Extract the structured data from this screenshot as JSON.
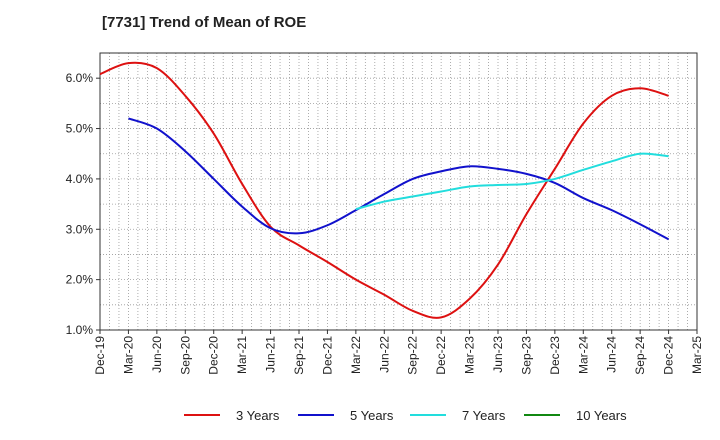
{
  "chart_data": {
    "type": "line",
    "title": "[7731]  Trend of Mean of ROE",
    "xlabel": "",
    "ylabel": "",
    "categories": [
      "Dec-19",
      "Mar-20",
      "Jun-20",
      "Sep-20",
      "Dec-20",
      "Mar-21",
      "Jun-21",
      "Sep-21",
      "Dec-21",
      "Mar-22",
      "Jun-22",
      "Sep-22",
      "Dec-22",
      "Mar-23",
      "Jun-23",
      "Sep-23",
      "Dec-23",
      "Mar-24",
      "Jun-24",
      "Sep-24",
      "Dec-24",
      "Mar-25"
    ],
    "ylim": [
      1.0,
      6.5
    ],
    "yticks": [
      1.0,
      2.0,
      3.0,
      4.0,
      5.0,
      6.0
    ],
    "ytick_labels": [
      "1.0%",
      "2.0%",
      "3.0%",
      "4.0%",
      "5.0%",
      "6.0%"
    ],
    "grid": true,
    "legend_position": "bottom",
    "series": [
      {
        "name": "3 Years",
        "color": "#dd1111",
        "values": [
          6.08,
          6.3,
          6.2,
          5.65,
          4.9,
          3.9,
          3.05,
          2.68,
          2.35,
          2.0,
          1.7,
          1.38,
          1.25,
          1.62,
          2.3,
          3.3,
          4.2,
          5.1,
          5.65,
          5.8,
          5.65,
          null
        ]
      },
      {
        "name": "5 Years",
        "color": "#1111cc",
        "values": [
          null,
          5.2,
          5.0,
          4.55,
          4.0,
          3.45,
          3.02,
          2.92,
          3.08,
          3.38,
          3.7,
          4.0,
          4.15,
          4.25,
          4.2,
          4.1,
          3.92,
          3.62,
          3.38,
          3.1,
          2.8,
          null
        ]
      },
      {
        "name": "7 Years",
        "color": "#22dddd",
        "values": [
          null,
          null,
          null,
          null,
          null,
          null,
          null,
          null,
          null,
          3.4,
          3.55,
          3.65,
          3.75,
          3.85,
          3.88,
          3.9,
          4.0,
          4.18,
          4.35,
          4.5,
          4.45,
          null
        ]
      },
      {
        "name": "10 Years",
        "color": "#118811",
        "values": [
          null,
          null,
          null,
          null,
          null,
          null,
          null,
          null,
          null,
          null,
          null,
          null,
          null,
          null,
          null,
          null,
          null,
          null,
          null,
          null,
          null,
          null
        ]
      }
    ]
  }
}
